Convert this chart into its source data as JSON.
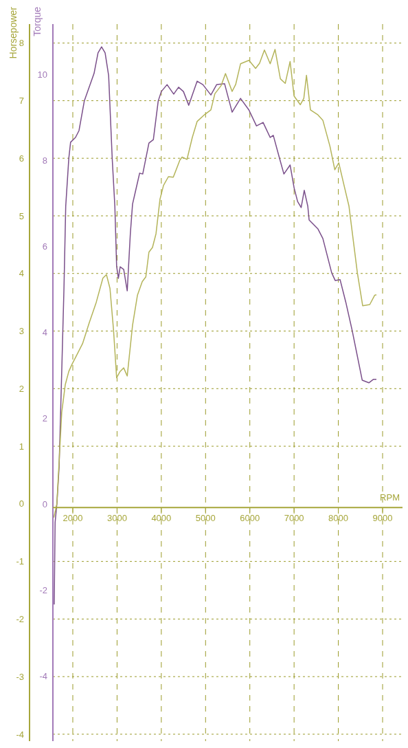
{
  "chart_data": {
    "type": "line",
    "xlabel": "RPM",
    "ylabel": "Torque",
    "y2label": "Horsepower",
    "xlim": [
      1550,
      9450
    ],
    "xticks": [
      2000,
      3000,
      4000,
      5000,
      6000,
      7000,
      8000,
      9000
    ],
    "ylim": [
      -5.52,
      11.17
    ],
    "yticks": [
      -4,
      -2,
      0,
      2,
      4,
      6,
      8,
      10
    ],
    "y2lim": [
      -4.12,
      8.33
    ],
    "y2ticks": [
      -4,
      -3,
      -2,
      -1,
      0,
      1,
      2,
      3,
      4,
      5,
      6,
      7,
      8
    ],
    "grid": true,
    "series": [
      {
        "color": "#7a4f8a",
        "x": [
          1580,
          1600,
          1640,
          1690,
          1750,
          1800,
          1840,
          1910,
          1950,
          2060,
          2140,
          2260,
          2480,
          2570,
          2650,
          2730,
          2810,
          2890,
          2950,
          2990,
          3030,
          3070,
          3150,
          3230,
          3300,
          3350,
          3410,
          3510,
          3580,
          3720,
          3820,
          3930,
          4000,
          4130,
          4280,
          4390,
          4500,
          4620,
          4810,
          4940,
          5120,
          5250,
          5430,
          5600,
          5790,
          5980,
          6150,
          6300,
          6460,
          6530,
          6670,
          6770,
          6910,
          7000,
          7080,
          7160,
          7230,
          7310,
          7340,
          7540,
          7650,
          7850,
          7930,
          8040,
          8170,
          8310,
          8540,
          8690,
          8790,
          8860
        ],
        "values": [
          -2.34,
          -0.43,
          0,
          0.85,
          3.09,
          5.01,
          6.93,
          8.05,
          8.42,
          8.53,
          8.69,
          9.38,
          10.02,
          10.5,
          10.64,
          10.5,
          9.97,
          8.05,
          6.93,
          5.54,
          5.25,
          5.52,
          5.46,
          4.96,
          6.29,
          6.98,
          7.25,
          7.7,
          7.68,
          8.4,
          8.48,
          9.38,
          9.6,
          9.76,
          9.54,
          9.7,
          9.6,
          9.28,
          9.84,
          9.76,
          9.52,
          9.76,
          9.78,
          9.12,
          9.44,
          9.17,
          8.8,
          8.88,
          8.53,
          8.58,
          8.05,
          7.68,
          7.89,
          7.36,
          7.04,
          6.9,
          7.3,
          6.93,
          6.61,
          6.4,
          6.18,
          5.38,
          5.2,
          5.22,
          4.69,
          4.05,
          2.88,
          2.82,
          2.9,
          2.9
        ]
      },
      {
        "color": "#b4b45a",
        "axis": "y2",
        "x": [
          1570,
          1640,
          1750,
          1830,
          1910,
          1980,
          2060,
          2220,
          2370,
          2530,
          2680,
          2760,
          2840,
          2920,
          2990,
          3070,
          3150,
          3230,
          3350,
          3460,
          3570,
          3650,
          3720,
          3800,
          3880,
          3970,
          4050,
          4160,
          4270,
          4420,
          4470,
          4580,
          4700,
          4810,
          4980,
          5120,
          5210,
          5350,
          5450,
          5600,
          5680,
          5790,
          5980,
          6130,
          6220,
          6330,
          6460,
          6570,
          6690,
          6800,
          6910,
          7000,
          7140,
          7220,
          7280,
          7370,
          7530,
          7650,
          7810,
          7920,
          8010,
          8120,
          8240,
          8430,
          8550,
          8710,
          8820,
          8860
        ],
        "values": [
          -0.24,
          0,
          1.59,
          2.07,
          2.3,
          2.42,
          2.54,
          2.78,
          3.14,
          3.5,
          3.92,
          3.98,
          3.74,
          3.02,
          2.19,
          2.3,
          2.36,
          2.22,
          3.1,
          3.62,
          3.86,
          3.94,
          4.37,
          4.45,
          4.69,
          5.29,
          5.53,
          5.68,
          5.67,
          5.97,
          6.02,
          5.98,
          6.36,
          6.64,
          6.76,
          6.84,
          7.12,
          7.26,
          7.47,
          7.16,
          7.28,
          7.64,
          7.7,
          7.56,
          7.65,
          7.88,
          7.64,
          7.89,
          7.38,
          7.3,
          7.68,
          7.08,
          6.93,
          7.04,
          7.44,
          6.84,
          6.76,
          6.66,
          6.21,
          5.8,
          5.92,
          5.56,
          5.17,
          4.01,
          3.44,
          3.46,
          3.62,
          3.63
        ]
      }
    ]
  }
}
